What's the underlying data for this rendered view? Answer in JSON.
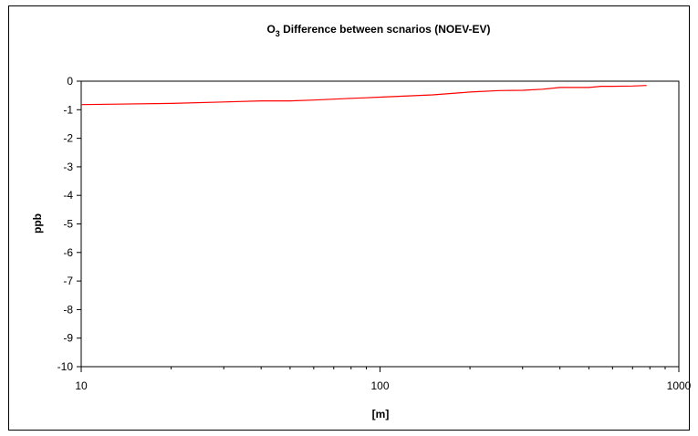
{
  "chart_data": {
    "type": "line",
    "title_main": "O",
    "title_sub": "3",
    "title_rest": " Difference between scnarios (NOEV-EV)",
    "xlabel": "[m]",
    "ylabel": "ppb",
    "x_scale": "log",
    "xlim": [
      10,
      1000
    ],
    "ylim": [
      -10,
      0
    ],
    "x_ticks": [
      10,
      100,
      1000
    ],
    "x_tick_labels": [
      "10",
      "100",
      "1000"
    ],
    "y_ticks": [
      0,
      -1,
      -2,
      -3,
      -4,
      -5,
      -6,
      -7,
      -8,
      -9,
      -10
    ],
    "y_tick_labels": [
      "0",
      "-1",
      "-2",
      "-3",
      "-4",
      "-5",
      "-6",
      "-7",
      "-8",
      "-9",
      "-10"
    ],
    "grid": false,
    "legend": "none",
    "series": [
      {
        "color": "#ff0000",
        "x": [
          10,
          20,
          30,
          40,
          50,
          60,
          70,
          80,
          90,
          100,
          150,
          200,
          250,
          300,
          350,
          400,
          500,
          550,
          600,
          700,
          780
        ],
        "y": [
          -0.82,
          -0.78,
          -0.73,
          -0.69,
          -0.69,
          -0.66,
          -0.63,
          -0.6,
          -0.58,
          -0.56,
          -0.48,
          -0.38,
          -0.33,
          -0.32,
          -0.28,
          -0.22,
          -0.22,
          -0.18,
          -0.18,
          -0.17,
          -0.15
        ]
      }
    ]
  }
}
